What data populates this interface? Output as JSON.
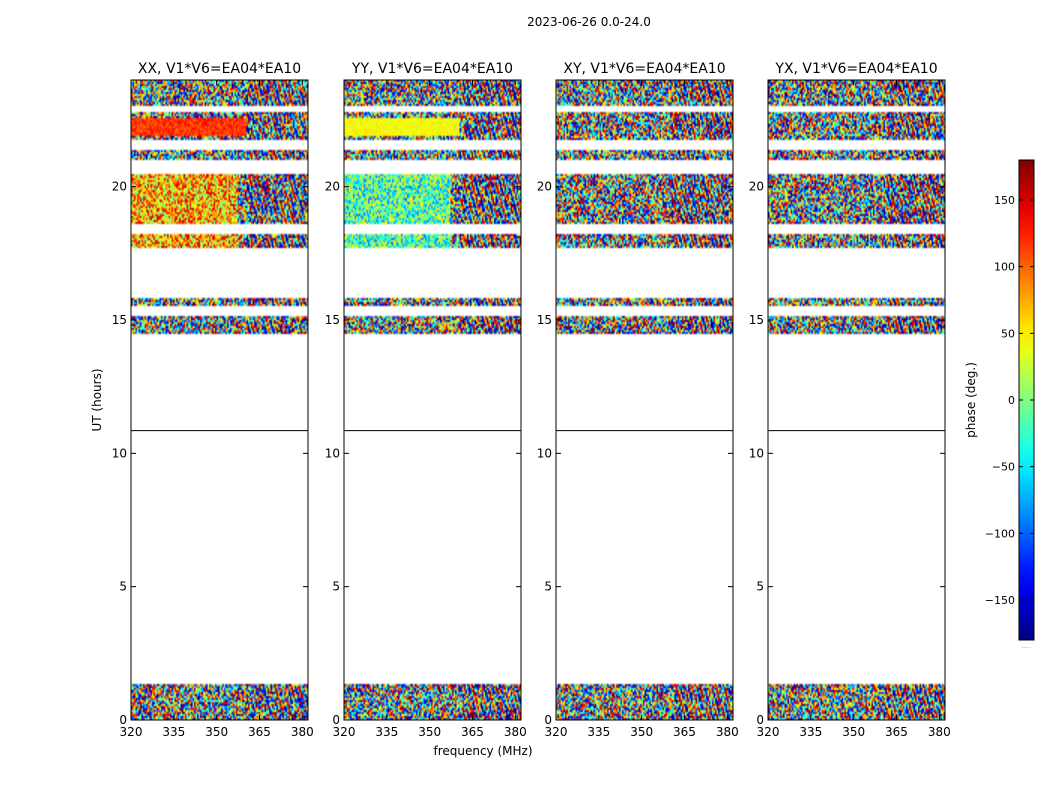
{
  "suptitle": "2023-06-26 0.0-24.0",
  "chart_data": {
    "type": "heatmap",
    "xlabel": "frequency (MHz)",
    "ylabel": "UT (hours)",
    "xlim": [
      320,
      382
    ],
    "ylim": [
      0,
      24
    ],
    "xticks": [
      {
        "value": 320,
        "label": "320"
      },
      {
        "value": 335,
        "label": "335"
      },
      {
        "value": 350,
        "label": "350"
      },
      {
        "value": 365,
        "label": "365"
      },
      {
        "value": 380,
        "label": "380"
      }
    ],
    "yticks": [
      {
        "value": 0,
        "label": "0"
      },
      {
        "value": 5,
        "label": "5"
      },
      {
        "value": 10,
        "label": "10"
      },
      {
        "value": 15,
        "label": "15"
      },
      {
        "value": 20,
        "label": "20"
      }
    ],
    "panels": [
      {
        "title": "XX, V1*V6=EA04*EA10",
        "mode": "xx"
      },
      {
        "title": "YY, V1*V6=EA04*EA10",
        "mode": "yy"
      },
      {
        "title": "XY, V1*V6=EA04*EA10",
        "mode": "cross"
      },
      {
        "title": "YX, V1*V6=EA04*EA10",
        "mode": "cross"
      }
    ],
    "data_segments_ut_hours": [
      [
        0.0,
        1.35
      ],
      [
        14.45,
        15.85
      ],
      [
        17.7,
        20.45
      ],
      [
        21.0,
        22.8
      ],
      [
        23.0,
        24.0
      ]
    ],
    "flag_lines_ut_hours": [
      10.85
    ],
    "colorbar": {
      "label": "phase (deg.)",
      "range": [
        -180,
        180
      ],
      "colormap": "jet",
      "ticks": [
        {
          "value": 150,
          "label": "150"
        },
        {
          "value": 100,
          "label": "100"
        },
        {
          "value": 50,
          "label": "50"
        },
        {
          "value": 0,
          "label": "0"
        },
        {
          "value": -50,
          "label": "−50"
        },
        {
          "value": -100,
          "label": "−100"
        },
        {
          "value": -150,
          "label": "−150"
        }
      ]
    }
  }
}
